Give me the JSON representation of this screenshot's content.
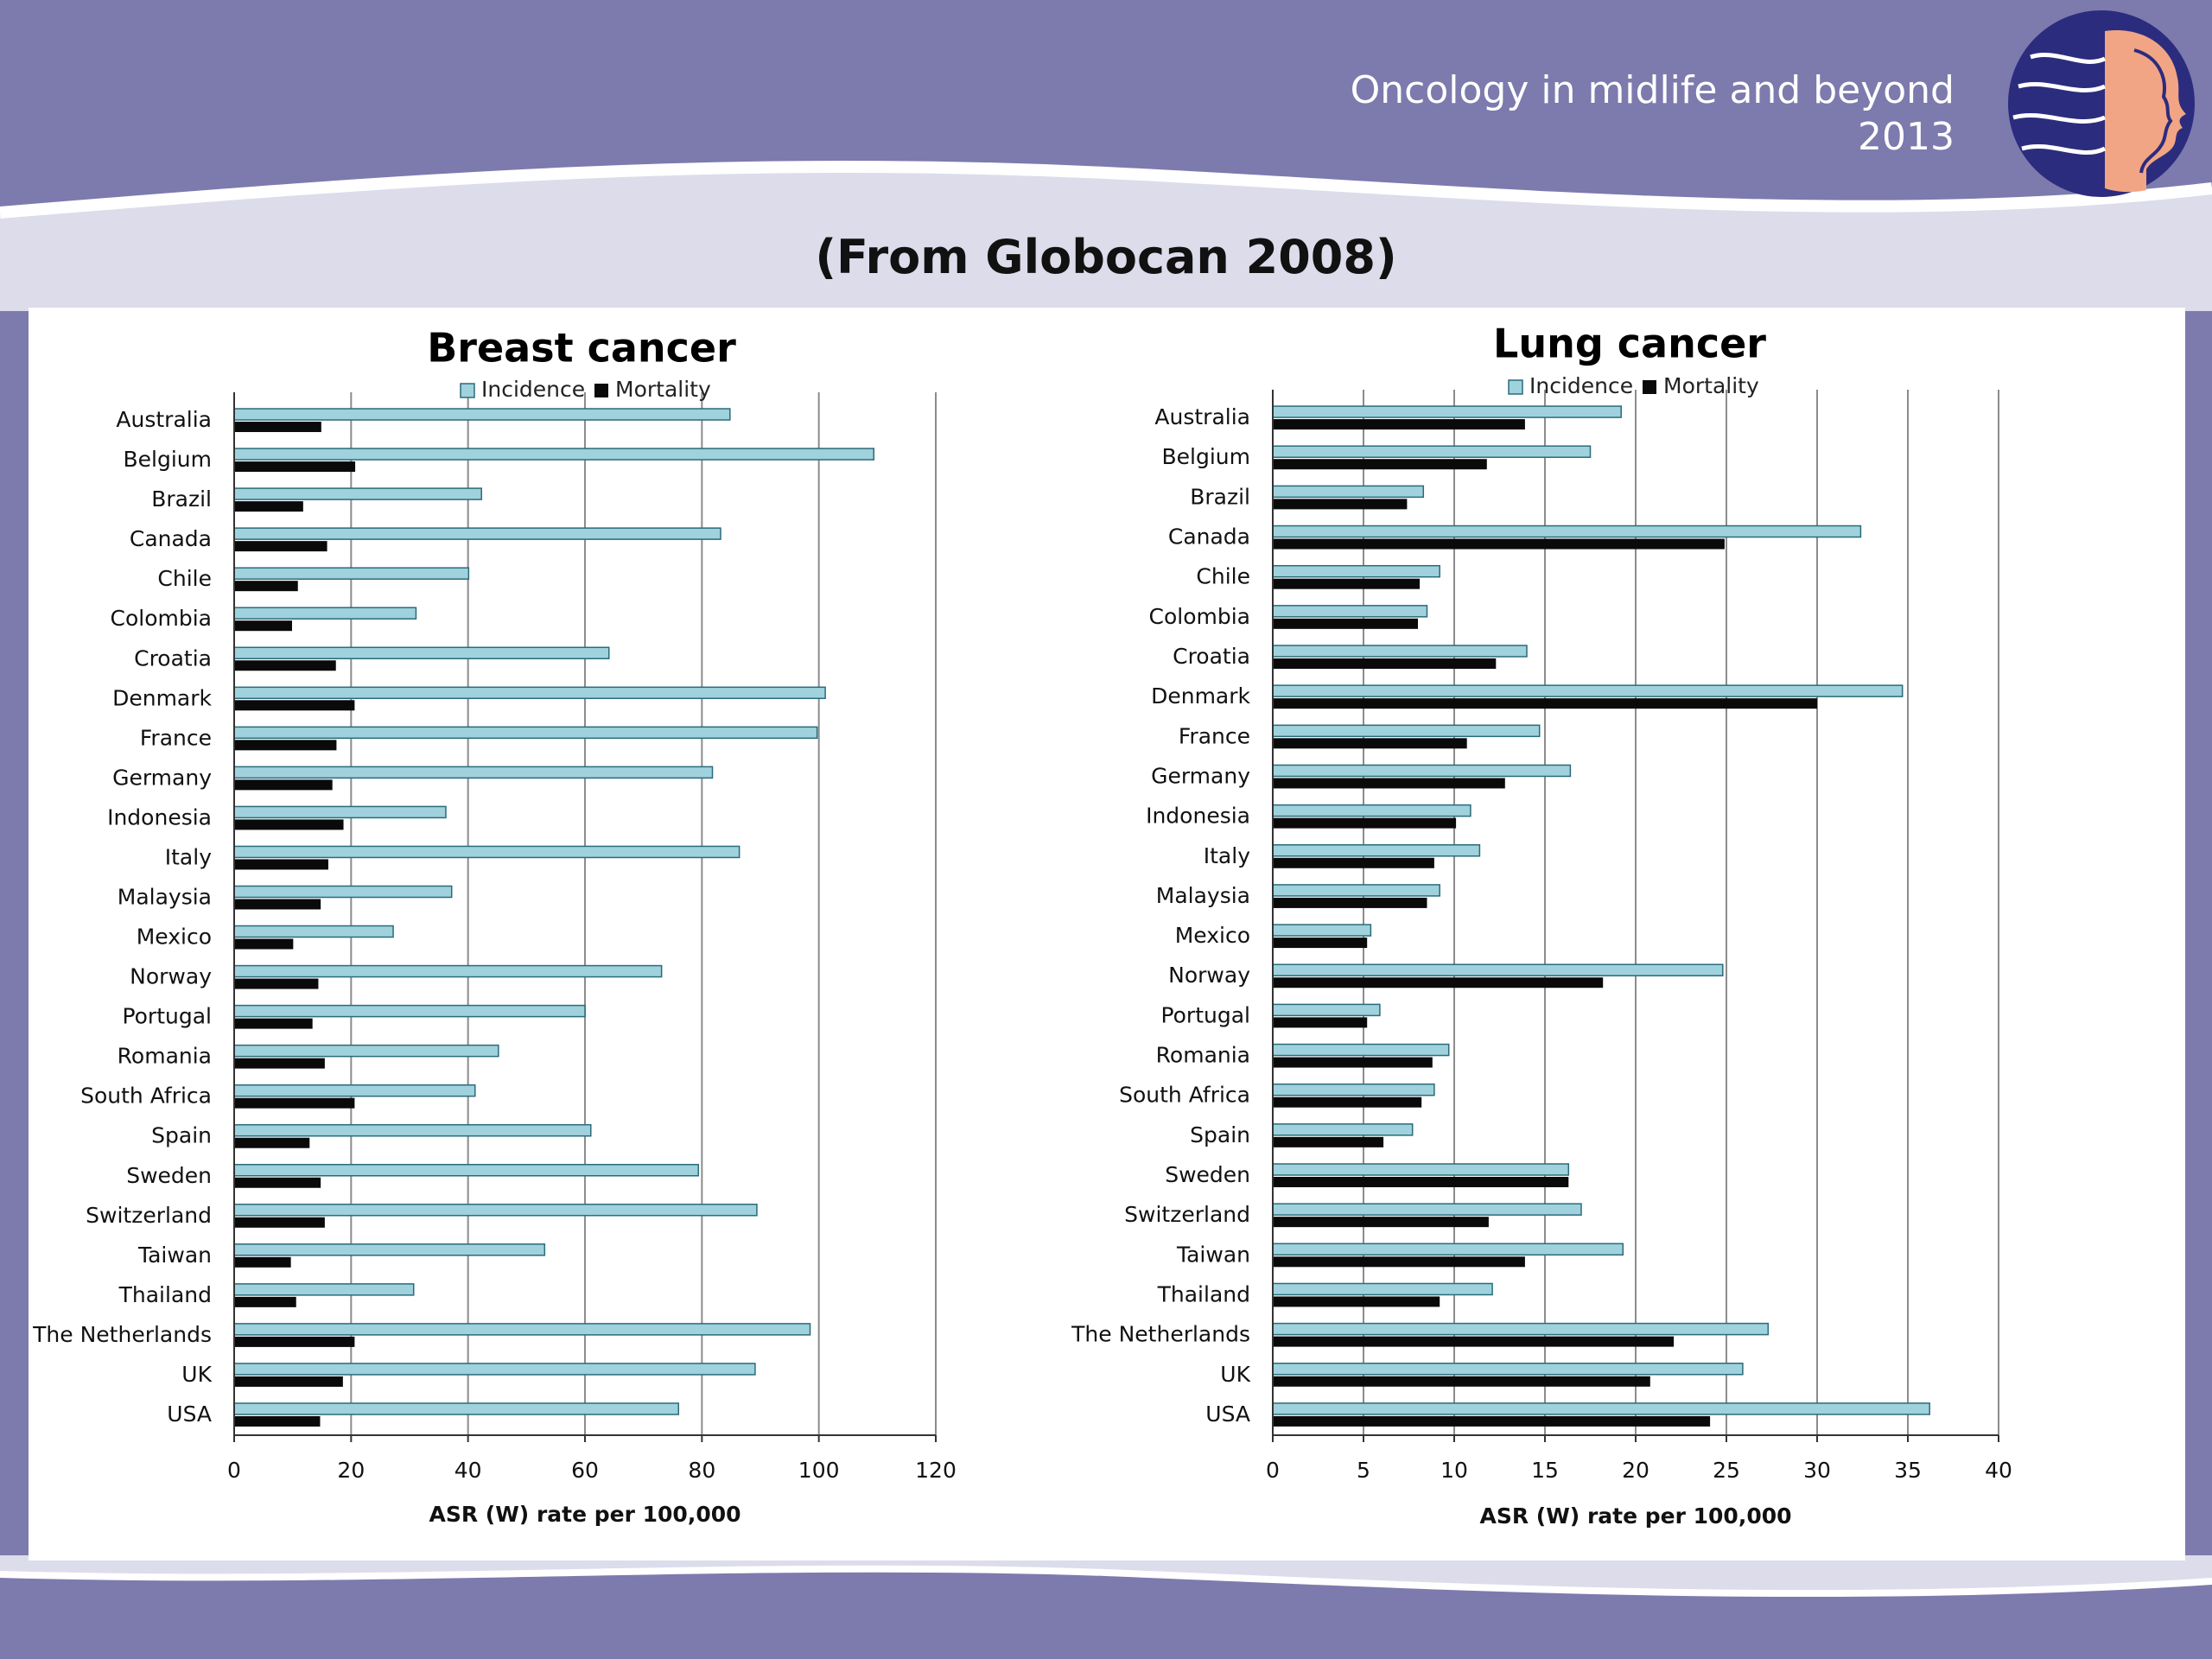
{
  "header": {
    "title_line1": "Oncology in midlife and beyond",
    "title_line2": "2013"
  },
  "subtitle": "(From Globocan 2008)",
  "colors": {
    "incidence": "#9fd2dc",
    "incidence_border": "#2a6b7c",
    "mortality": "#0a0a0a",
    "header_bg": "#7d7aae",
    "logo_bg": "#2c2c7e",
    "logo_face": "#f2a584"
  },
  "logo_icon": "profile-faces-logo-icon",
  "chart_data": [
    {
      "type": "bar",
      "orientation": "horizontal",
      "title": "Breast cancer",
      "xlabel": "ASR (W) rate per 100,000",
      "xlim": [
        0,
        120
      ],
      "xticks": [
        0,
        20,
        40,
        60,
        80,
        100,
        120
      ],
      "grid": "vertical",
      "legend_position": "top",
      "categories": [
        "Australia",
        "Belgium",
        "Brazil",
        "Canada",
        "Chile",
        "Colombia",
        "Croatia",
        "Denmark",
        "France",
        "Germany",
        "Indonesia",
        "Italy",
        "Malaysia",
        "Mexico",
        "Norway",
        "Portugal",
        "Romania",
        "South Africa",
        "Spain",
        "Sweden",
        "Switzerland",
        "Taiwan",
        "Thailand",
        "The Netherlands",
        "UK",
        "USA"
      ],
      "series": [
        {
          "name": "Incidence",
          "values": [
            84.8,
            109.4,
            42.3,
            83.2,
            40.1,
            31.1,
            64.1,
            101.1,
            99.7,
            81.8,
            36.2,
            86.4,
            37.2,
            27.2,
            73.1,
            60.0,
            45.2,
            41.2,
            61.0,
            79.4,
            89.4,
            53.1,
            30.7,
            98.5,
            89.1,
            76.0
          ]
        },
        {
          "name": "Mortality",
          "values": [
            14.9,
            20.7,
            11.8,
            15.9,
            10.9,
            9.9,
            17.4,
            20.6,
            17.5,
            16.8,
            18.7,
            16.1,
            14.8,
            10.1,
            14.4,
            13.4,
            15.5,
            20.6,
            12.9,
            14.8,
            15.5,
            9.7,
            10.6,
            20.6,
            18.6,
            14.7
          ]
        }
      ]
    },
    {
      "type": "bar",
      "orientation": "horizontal",
      "title": "Lung cancer",
      "xlabel": "ASR (W) rate per 100,000",
      "xlim": [
        0,
        40
      ],
      "xticks": [
        0,
        5,
        10,
        15,
        20,
        25,
        30,
        35,
        40
      ],
      "grid": "vertical",
      "legend_position": "top",
      "categories": [
        "Australia",
        "Belgium",
        "Brazil",
        "Canada",
        "Chile",
        "Colombia",
        "Croatia",
        "Denmark",
        "France",
        "Germany",
        "Indonesia",
        "Italy",
        "Malaysia",
        "Mexico",
        "Norway",
        "Portugal",
        "Romania",
        "South Africa",
        "Spain",
        "Sweden",
        "Switzerland",
        "Taiwan",
        "Thailand",
        "The Netherlands",
        "UK",
        "USA"
      ],
      "series": [
        {
          "name": "Incidence",
          "values": [
            19.2,
            17.5,
            8.3,
            32.4,
            9.2,
            8.5,
            14.0,
            34.7,
            14.7,
            16.4,
            10.9,
            11.4,
            9.2,
            5.4,
            24.8,
            5.9,
            9.7,
            8.9,
            7.7,
            16.3,
            17.0,
            19.3,
            12.1,
            27.3,
            25.9,
            36.2
          ]
        },
        {
          "name": "Mortality",
          "values": [
            13.9,
            11.8,
            7.4,
            24.9,
            8.1,
            8.0,
            12.3,
            30.0,
            10.7,
            12.8,
            10.1,
            8.9,
            8.5,
            5.2,
            18.2,
            5.2,
            8.8,
            8.2,
            6.1,
            16.3,
            11.9,
            13.9,
            9.2,
            22.1,
            20.8,
            24.1
          ]
        }
      ]
    }
  ]
}
